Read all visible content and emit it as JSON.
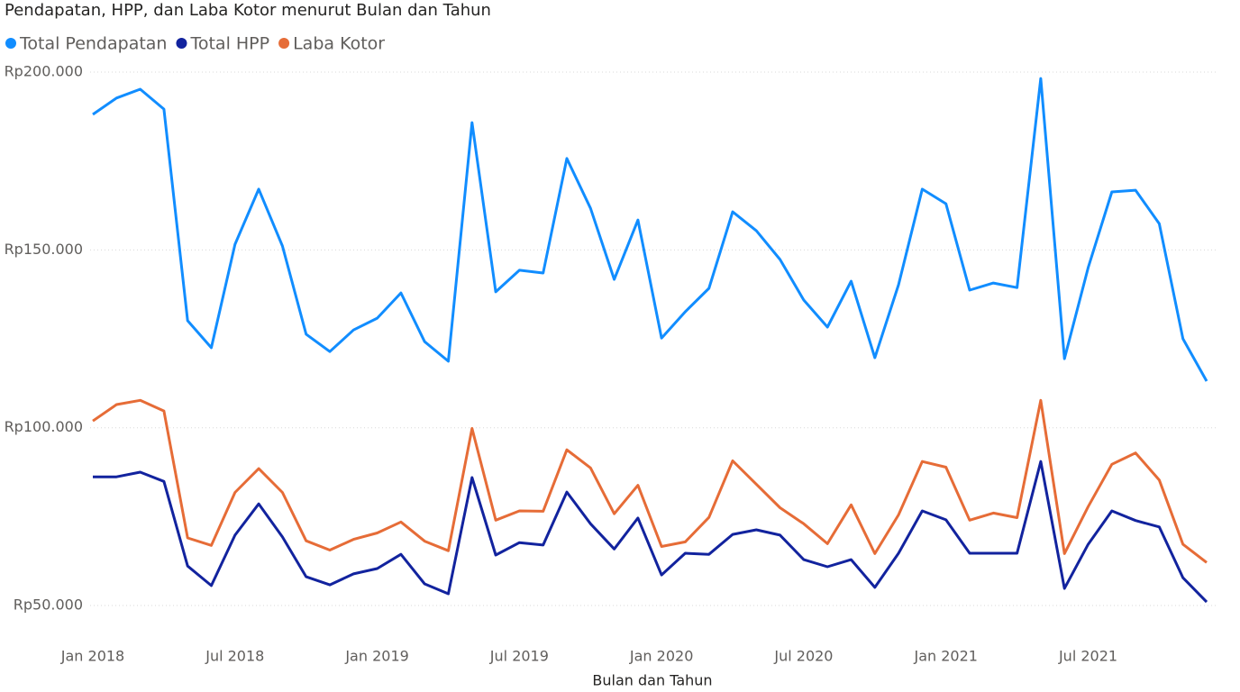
{
  "chart_data": {
    "type": "line",
    "title": "Pendapatan, HPP, dan Laba Kotor menurut Bulan dan Tahun",
    "x_label": "Bulan dan Tahun",
    "categories": [
      "Jan 2018",
      null,
      null,
      null,
      null,
      null,
      "Jul 2018",
      null,
      null,
      null,
      null,
      null,
      "Jan 2019",
      null,
      null,
      null,
      null,
      null,
      "Jul 2019",
      null,
      null,
      null,
      null,
      null,
      "Jan 2020",
      null,
      null,
      null,
      null,
      null,
      "Jul 2020",
      null,
      null,
      null,
      null,
      null,
      "Jan 2021",
      null,
      null,
      null,
      null,
      null,
      "Jul 2021",
      null,
      null,
      null,
      null,
      null
    ],
    "series": [
      {
        "name": "Total Pendapatan",
        "color": "#118DFF",
        "values": [
          188100,
          192700,
          195200,
          189600,
          130100,
          122500,
          151600,
          167100,
          151100,
          126300,
          121400,
          127500,
          130800,
          137900,
          124200,
          118700,
          185800,
          138200,
          144300,
          143500,
          175700,
          161700,
          141700,
          158400,
          125200,
          132600,
          139200,
          160700,
          155400,
          147300,
          135900,
          128300,
          141200,
          119700,
          140200,
          167100,
          163000,
          138700,
          140700,
          139400,
          198200,
          119400,
          145000,
          166300,
          166800,
          157400,
          125000,
          113100
        ]
      },
      {
        "name": "Total HPP",
        "color": "#12239E",
        "values": [
          86200,
          86200,
          87500,
          84900,
          61100,
          55600,
          69800,
          78600,
          69300,
          58100,
          55800,
          58900,
          60400,
          64400,
          56100,
          53300,
          86000,
          64200,
          67700,
          67000,
          81900,
          73000,
          65900,
          74600,
          58600,
          64700,
          64400,
          70000,
          71300,
          69800,
          62900,
          60900,
          62900,
          55100,
          64700,
          76600,
          74100,
          64700,
          64700,
          64700,
          90500,
          54800,
          67200,
          76600,
          73900,
          72100,
          57800,
          51000
        ]
      },
      {
        "name": "Laba Kotor",
        "color": "#E66C37",
        "values": [
          101900,
          106500,
          107700,
          104700,
          69000,
          66900,
          81800,
          88500,
          81800,
          68200,
          65600,
          68600,
          70400,
          73500,
          68100,
          65400,
          99800,
          74000,
          76600,
          76500,
          93800,
          88700,
          75800,
          83800,
          66600,
          67900,
          74800,
          90700,
          84100,
          77500,
          73000,
          67400,
          78300,
          64600,
          75500,
          90500,
          88900,
          74000,
          76000,
          74700,
          107700,
          64600,
          77800,
          89700,
          92900,
          85300,
          67200,
          62100
        ]
      }
    ],
    "ylim": [
      42000,
      203000
    ],
    "yticks": [
      {
        "value": 50000,
        "label": "Rp50.000"
      },
      {
        "value": 100000,
        "label": "Rp100.000"
      },
      {
        "value": 150000,
        "label": "Rp150.000"
      },
      {
        "value": 200000,
        "label": "Rp200.000"
      }
    ],
    "grid": true
  }
}
